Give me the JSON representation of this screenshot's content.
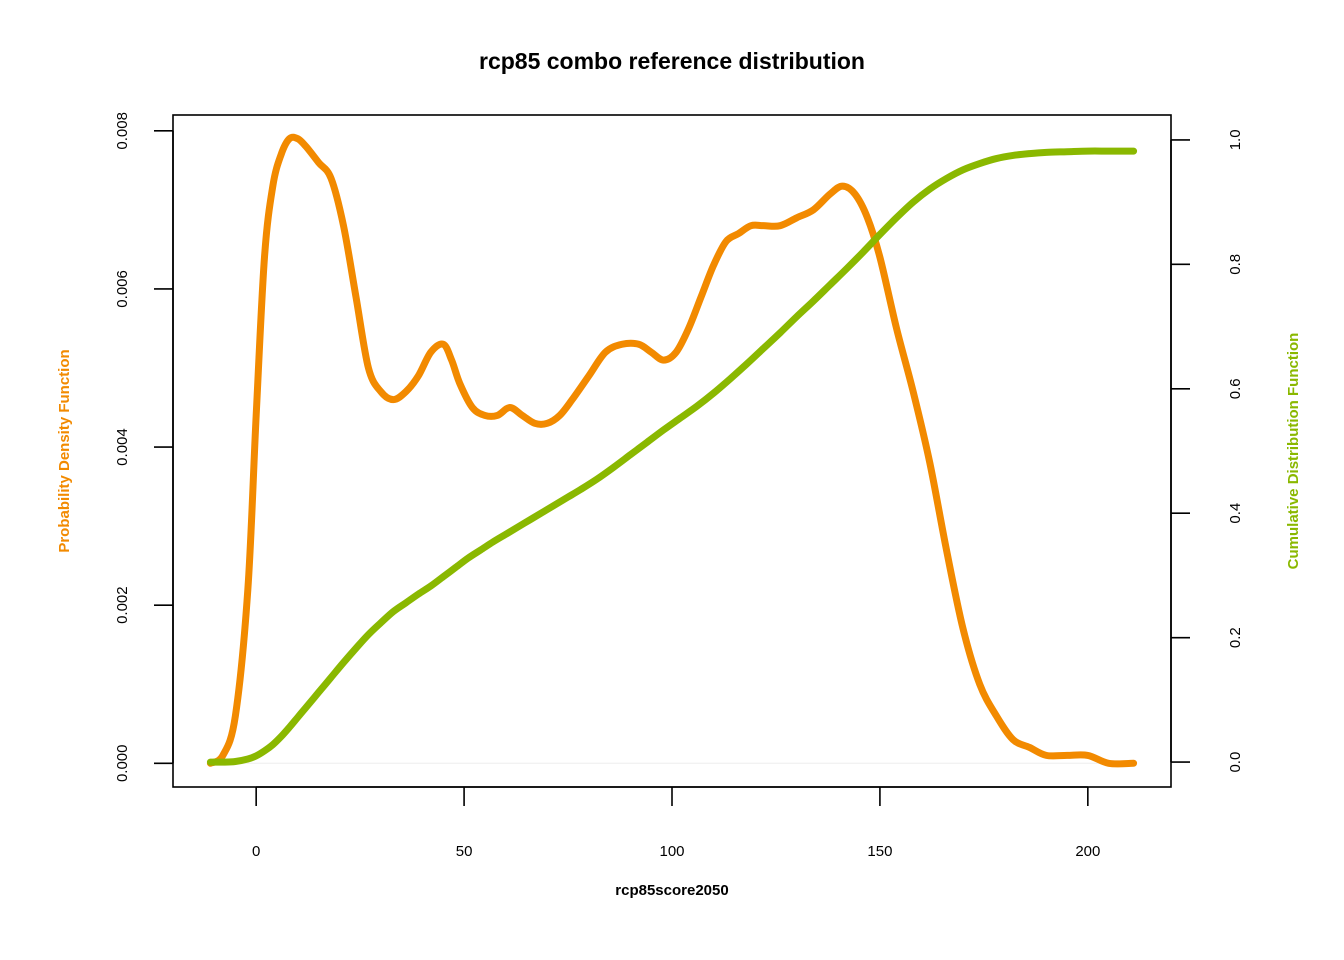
{
  "chart_data": {
    "type": "line",
    "title": "rcp85 combo reference distribution",
    "xlabel": "rcp85score2050",
    "ylabel_left": "Probability Density Function",
    "ylabel_right": "Cumulative Distribution Function",
    "xlim": [
      -20,
      220
    ],
    "ylim_left": [
      -0.0003,
      0.0082
    ],
    "ylim_right": [
      -0.04,
      1.04
    ],
    "x_ticks": [
      0,
      50,
      100,
      150,
      200
    ],
    "y_left_ticks": [
      0.0,
      0.002,
      0.004,
      0.006,
      0.008
    ],
    "y_left_tick_labels": [
      "0.000",
      "0.002",
      "0.004",
      "0.006",
      "0.008"
    ],
    "y_right_ticks": [
      0.0,
      0.2,
      0.4,
      0.6,
      0.8,
      1.0
    ],
    "y_right_tick_labels": [
      "0.0",
      "0.2",
      "0.4",
      "0.6",
      "0.8",
      "1.0"
    ],
    "colors": {
      "pdf": "#f28a00",
      "cdf": "#8ab800",
      "zero_line": "#eeeeee",
      "axis": "#000000"
    },
    "series": [
      {
        "axis": "left",
        "x": [
          -11,
          -8,
          -5,
          -2,
          0,
          2,
          4,
          6,
          8,
          10,
          12,
          15,
          18,
          21,
          24,
          27,
          30,
          33,
          36,
          39,
          42,
          45,
          47,
          49,
          52,
          55,
          58,
          61,
          64,
          67,
          70,
          73,
          76,
          80,
          84,
          88,
          92,
          95,
          98,
          101,
          104,
          107,
          110,
          113,
          116,
          119,
          122,
          126,
          130,
          134,
          138,
          141,
          144,
          147,
          150,
          154,
          158,
          162,
          166,
          170,
          174,
          178,
          182,
          186,
          190,
          195,
          200,
          205,
          211
        ],
        "y": [
          0.0,
          0.0001,
          0.0006,
          0.0022,
          0.0044,
          0.0064,
          0.0073,
          0.0077,
          0.0079,
          0.0079,
          0.0078,
          0.0076,
          0.0074,
          0.0068,
          0.0059,
          0.005,
          0.0047,
          0.0046,
          0.0047,
          0.0049,
          0.0052,
          0.0053,
          0.0051,
          0.0048,
          0.0045,
          0.0044,
          0.0044,
          0.0045,
          0.0044,
          0.0043,
          0.0043,
          0.0044,
          0.0046,
          0.0049,
          0.0052,
          0.0053,
          0.0053,
          0.0052,
          0.0051,
          0.0052,
          0.0055,
          0.0059,
          0.0063,
          0.0066,
          0.0067,
          0.0068,
          0.0068,
          0.0068,
          0.0069,
          0.007,
          0.0072,
          0.0073,
          0.0072,
          0.0069,
          0.0064,
          0.0055,
          0.0047,
          0.0038,
          0.0027,
          0.0017,
          0.001,
          0.0006,
          0.0003,
          0.0002,
          0.0001,
          0.0001,
          0.0001,
          0.0,
          0.0
        ]
      },
      {
        "axis": "right",
        "x": [
          -11,
          -8,
          -5,
          -2,
          0,
          2,
          4,
          6,
          8,
          10,
          12,
          15,
          18,
          21,
          24,
          27,
          30,
          33,
          36,
          39,
          42,
          45,
          48,
          51,
          54,
          57,
          60,
          63,
          66,
          69,
          72,
          75,
          78,
          82,
          86,
          90,
          94,
          98,
          102,
          106,
          110,
          114,
          118,
          122,
          126,
          130,
          134,
          138,
          142,
          146,
          150,
          154,
          158,
          162,
          166,
          170,
          174,
          178,
          182,
          186,
          190,
          195,
          200,
          205,
          211
        ],
        "y": [
          0.0,
          0.0,
          0.001,
          0.005,
          0.01,
          0.018,
          0.028,
          0.041,
          0.056,
          0.072,
          0.088,
          0.112,
          0.136,
          0.16,
          0.183,
          0.205,
          0.224,
          0.242,
          0.256,
          0.27,
          0.283,
          0.298,
          0.313,
          0.328,
          0.341,
          0.354,
          0.366,
          0.378,
          0.39,
          0.402,
          0.414,
          0.426,
          0.438,
          0.455,
          0.474,
          0.494,
          0.514,
          0.534,
          0.553,
          0.572,
          0.593,
          0.616,
          0.64,
          0.665,
          0.69,
          0.716,
          0.741,
          0.767,
          0.793,
          0.82,
          0.848,
          0.875,
          0.9,
          0.921,
          0.938,
          0.952,
          0.962,
          0.97,
          0.975,
          0.978,
          0.98,
          0.981,
          0.982,
          0.982,
          0.982
        ]
      }
    ]
  }
}
